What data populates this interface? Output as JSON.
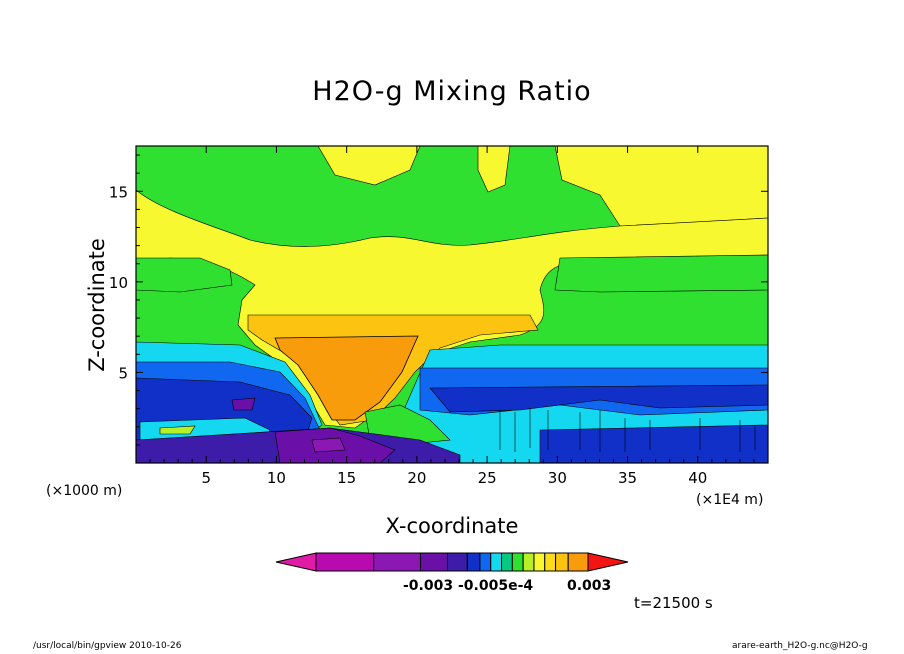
{
  "title": "H2O-g Mixing Ratio",
  "chart_data": {
    "type": "heatmap",
    "title": "H2O-g Mixing Ratio",
    "xlabel": "X-coordinate",
    "ylabel": "Z-coordinate",
    "x_unit_left": "(×1000 m)",
    "x_unit_right": "(×1E4 m)",
    "xlim": [
      0,
      450
    ],
    "ylim": [
      0,
      17.5
    ],
    "x_ticks": [
      "5",
      "10",
      "15",
      "20",
      "25",
      "30",
      "35",
      "40"
    ],
    "y_ticks": [
      "5",
      "10",
      "15"
    ],
    "colorbar": {
      "colors": [
        "#e01ca6",
        "#b80ab0",
        "#8c18b4",
        "#6a10a8",
        "#3c1ca8",
        "#1030c8",
        "#1068f0",
        "#14d8f0",
        "#08c880",
        "#30e030",
        "#b8f028",
        "#f8f830",
        "#fcdc18",
        "#fcc410",
        "#f89c0c",
        "#f86410",
        "#f41414"
      ],
      "visible_labels": [
        "-0.003",
        "-0.005e-4",
        "0.003"
      ]
    },
    "regions": [
      {
        "level": "green",
        "desc": "upper domain background"
      },
      {
        "level": "yellow",
        "desc": "band 10-15 km with anvil outflow"
      },
      {
        "level": "orange",
        "desc": "inverted triangular core at x 11-20, z 2.5-7"
      },
      {
        "level": "cyan",
        "desc": "band near z 5-6"
      },
      {
        "level": "blue",
        "desc": "lower layers z 0-5"
      },
      {
        "level": "purple",
        "desc": "near-surface z 0-1.5 under cloud"
      }
    ]
  },
  "time_label": "t=21500 s",
  "footer_left": "/usr/local/bin/gpview  2010-10-26",
  "footer_right": "arare-earth_H2O-g.nc@H2O-g"
}
